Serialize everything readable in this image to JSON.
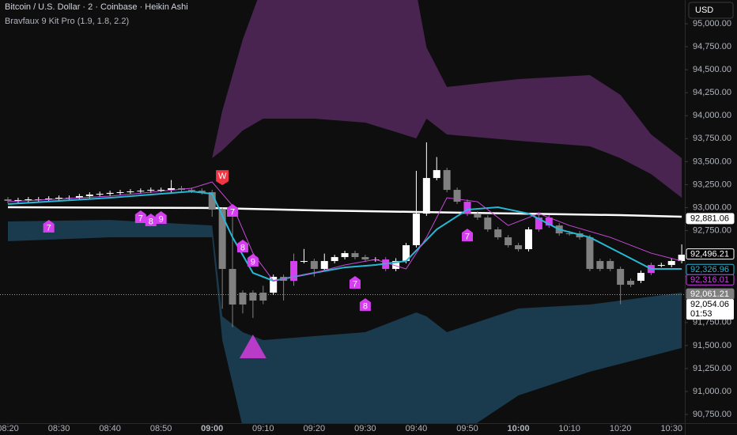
{
  "chart_data": {
    "type": "candlestick",
    "title": "Bitcoin / U.S. Dollar · 2 · Coinbase · Heikin Ashi",
    "subtitle": "Bravfaux 9 Kit Pro (1.9, 1.8, 2.2)",
    "currency": "USD",
    "x": [
      500,
      502,
      504,
      506,
      508,
      510,
      512,
      514,
      516,
      518,
      520,
      522,
      524,
      526,
      528,
      530,
      532,
      534,
      536,
      538,
      540,
      542,
      544,
      546,
      548,
      550,
      552,
      554,
      556,
      558,
      560,
      562,
      564,
      566,
      568,
      570,
      572,
      574,
      576,
      578,
      580,
      582,
      584,
      586,
      588,
      590,
      592,
      594,
      596,
      598,
      600,
      602,
      604,
      606,
      608,
      610,
      612,
      614,
      616,
      618,
      620,
      622,
      624,
      626,
      628,
      630,
      632
    ],
    "open": [
      93090,
      93073,
      93082,
      93090,
      93090,
      93099,
      93107,
      93107,
      93125,
      93142,
      93150,
      93160,
      93168,
      93176,
      93184,
      93193,
      93193,
      93211,
      93193,
      93184,
      93168,
      92978,
      92333,
      91946,
      92075,
      91989,
      92075,
      92247,
      92204,
      92419,
      92419,
      92333,
      92419,
      92462,
      92505,
      92462,
      92436,
      92436,
      92333,
      92419,
      92591,
      92935,
      93322,
      93408,
      93193,
      93064,
      92935,
      92892,
      92763,
      92677,
      92591,
      92548,
      92763,
      92892,
      92806,
      92720,
      92720,
      92677,
      92333,
      92419,
      92333,
      92161,
      92204,
      92290,
      92376,
      92376,
      92419
    ],
    "high": [
      93115,
      93107,
      93115,
      93115,
      93124,
      93132,
      93132,
      93150,
      93167,
      93175,
      93185,
      93193,
      93201,
      93209,
      93218,
      93218,
      93300,
      93236,
      93218,
      93209,
      93193,
      93000,
      92900,
      92100,
      92100,
      92150,
      92272,
      92272,
      92500,
      92550,
      92444,
      92500,
      92487,
      92530,
      92530,
      92487,
      92461,
      92461,
      92450,
      92616,
      93400,
      93710,
      93550,
      93433,
      93218,
      93089,
      92960,
      92917,
      92788,
      92702,
      92616,
      92788,
      92950,
      92917,
      92831,
      92745,
      92745,
      92702,
      92444,
      92444,
      92358,
      92229,
      92315,
      92401,
      92401,
      92444,
      92600
    ],
    "low": [
      93048,
      93048,
      93057,
      93065,
      93065,
      93074,
      93082,
      93082,
      93100,
      93117,
      93125,
      93135,
      93143,
      93151,
      93159,
      93168,
      93168,
      93168,
      93159,
      93143,
      92900,
      91900,
      91700,
      91850,
      91800,
      91950,
      92050,
      91990,
      92150,
      92394,
      92250,
      92308,
      92394,
      92437,
      92437,
      92411,
      92411,
      92308,
      92308,
      92394,
      92566,
      92910,
      93297,
      93168,
      93039,
      92910,
      92867,
      92738,
      92652,
      92566,
      92523,
      92523,
      92738,
      92781,
      92695,
      92695,
      92652,
      92308,
      92308,
      92308,
      91950,
      92136,
      92179,
      92265,
      92351,
      92351,
      92394
    ],
    "close": [
      93073,
      93082,
      93090,
      93090,
      93099,
      93107,
      93107,
      93125,
      93142,
      93150,
      93160,
      93168,
      93176,
      93184,
      93193,
      93193,
      93211,
      93193,
      93184,
      93168,
      92978,
      92333,
      91946,
      92075,
      91989,
      92075,
      92247,
      92204,
      92419,
      92419,
      92333,
      92419,
      92462,
      92505,
      92462,
      92436,
      92436,
      92333,
      92419,
      92591,
      92935,
      93322,
      93408,
      93193,
      93064,
      92935,
      92892,
      92763,
      92677,
      92591,
      92548,
      92763,
      92892,
      92806,
      92720,
      92720,
      92677,
      92333,
      92419,
      92333,
      92161,
      92204,
      92290,
      92376,
      92376,
      92419,
      92488
    ],
    "colors": [
      "#808080",
      "#ffffff",
      "#ffffff",
      "#ffffff",
      "#ffffff",
      "#ffffff",
      "#ffffff",
      "#ffffff",
      "#ffffff",
      "#ffffff",
      "#ffffff",
      "#ffffff",
      "#ffffff",
      "#ffffff",
      "#ffffff",
      "#ffffff",
      "#ffffff",
      "#808080",
      "#808080",
      "#808080",
      "#808080",
      "#808080",
      "#808080",
      "#808080",
      "#808080",
      "#808080",
      "#ffffff",
      "#808080",
      "#d63ff0",
      "#ffffff",
      "#808080",
      "#ffffff",
      "#ffffff",
      "#ffffff",
      "#808080",
      "#808080",
      "#ffffff",
      "#d63ff0",
      "#ffffff",
      "#ffffff",
      "#ffffff",
      "#ffffff",
      "#ffffff",
      "#808080",
      "#808080",
      "#d63ff0",
      "#808080",
      "#808080",
      "#808080",
      "#808080",
      "#808080",
      "#ffffff",
      "#d63ff0",
      "#d63ff0",
      "#808080",
      "#808080",
      "#808080",
      "#808080",
      "#808080",
      "#808080",
      "#808080",
      "#808080",
      "#ffffff",
      "#d63ff0",
      "#ffffff",
      "#ffffff",
      "#ffffff"
    ],
    "xlim": [
      498.45,
      632.6
    ],
    "ylim": [
      90656,
      95258
    ],
    "xticks": [
      {
        "value": 500,
        "label": "08:20"
      },
      {
        "value": 510,
        "label": "08:30"
      },
      {
        "value": 520,
        "label": "08:40"
      },
      {
        "value": 530,
        "label": "08:50"
      },
      {
        "value": 540,
        "label": "09:00"
      },
      {
        "value": 550,
        "label": "09:10"
      },
      {
        "value": 560,
        "label": "09:20"
      },
      {
        "value": 570,
        "label": "09:30"
      },
      {
        "value": 580,
        "label": "09:40"
      },
      {
        "value": 590,
        "label": "09:50"
      },
      {
        "value": 600,
        "label": "10:00"
      },
      {
        "value": 610,
        "label": "10:10"
      },
      {
        "value": 620,
        "label": "10:20"
      },
      {
        "value": 630,
        "label": "10:30"
      }
    ],
    "yticks": [
      {
        "value": 95000,
        "label": "95,000.00"
      },
      {
        "value": 94750,
        "label": "94,750.00"
      },
      {
        "value": 94500,
        "label": "94,500.00"
      },
      {
        "value": 94250,
        "label": "94,250.00"
      },
      {
        "value": 94000,
        "label": "94,000.00"
      },
      {
        "value": 93750,
        "label": "93,750.00"
      },
      {
        "value": 93500,
        "label": "93,500.00"
      },
      {
        "value": 93250,
        "label": "93,250.00"
      },
      {
        "value": 93000,
        "label": "93,000.00"
      },
      {
        "value": 92750,
        "label": "92,750.00"
      },
      {
        "value": 92500,
        "label": "92,500.00"
      },
      {
        "value": 92250,
        "label": "92,250.00"
      },
      {
        "value": 92000,
        "label": "92,000.00"
      },
      {
        "value": 91750,
        "label": "91,750.00"
      },
      {
        "value": 91500,
        "label": "91,500.00"
      },
      {
        "value": 91250,
        "label": "91,250.00"
      },
      {
        "value": 91000,
        "label": "91,000.00"
      },
      {
        "value": 90750,
        "label": "90,750.00"
      }
    ],
    "bands": [
      {
        "color": "#4a2450",
        "x": [
          500,
          520,
          540,
          542,
          546,
          550,
          560,
          570,
          580,
          582,
          586,
          600,
          614,
          620,
          626,
          632
        ],
        "upper": [
          null,
          null,
          93538,
          94054,
          94828,
          95430,
          95774,
          95774,
          95344,
          94742,
          94312,
          94398,
          94441,
          94226,
          93796,
          93538
        ],
        "lower": [
          null,
          null,
          93538,
          93624,
          93839,
          93968,
          93968,
          93925,
          93753,
          93968,
          93796,
          93727,
          93667,
          93538,
          93365,
          93107
        ]
      },
      {
        "color": "#1a3a4e",
        "x": [
          500,
          520,
          540,
          542,
          546,
          550,
          560,
          570,
          580,
          582,
          586,
          600,
          614,
          620,
          626,
          632
        ],
        "upper": [
          92849,
          92866,
          92806,
          91817,
          91645,
          91559,
          91602,
          91645,
          91860,
          91817,
          91645,
          91903,
          91946,
          91989,
          92032,
          92075
        ],
        "lower": [
          92634,
          92677,
          92677,
          91559,
          90613,
          90440,
          90440,
          90440,
          90440,
          90440,
          90440,
          90957,
          91215,
          91301,
          91387,
          91473
        ]
      }
    ],
    "lines": [
      {
        "color": "#ffffff",
        "width": 2.5,
        "x": [
          500,
          540,
          560,
          580,
          600,
          620,
          632
        ],
        "values": [
          93004,
          92996,
          92970,
          92953,
          92935,
          92918,
          92901
        ]
      },
      {
        "color": "#26b8d4",
        "width": 2,
        "x": [
          500,
          520,
          536,
          540,
          544,
          548,
          552,
          556,
          560,
          566,
          572,
          578,
          584,
          590,
          596,
          602,
          608,
          614,
          620,
          626,
          632
        ],
        "values": [
          93039,
          93107,
          93176,
          93150,
          92677,
          92290,
          92204,
          92247,
          92290,
          92350,
          92376,
          92419,
          92763,
          92978,
          93004,
          92935,
          92763,
          92677,
          92505,
          92333,
          92333
        ]
      },
      {
        "color": "#c94ad8",
        "width": 1,
        "x": [
          500,
          520,
          536,
          540,
          544,
          548,
          552,
          556,
          560,
          566,
          572,
          578,
          582,
          586,
          592,
          598,
          604,
          610,
          618,
          626,
          632
        ],
        "values": [
          93064,
          93125,
          93211,
          93279,
          93021,
          92505,
          92204,
          92247,
          92290,
          92376,
          92436,
          92333,
          92677,
          93107,
          93064,
          92806,
          92935,
          92806,
          92677,
          92505,
          92419
        ]
      }
    ],
    "markers": [
      {
        "x": 508,
        "y": 92789,
        "label": "7",
        "color": "#d63ff0"
      },
      {
        "x": 526,
        "y": 92892,
        "label": "7",
        "color": "#d63ff0"
      },
      {
        "x": 528,
        "y": 92858,
        "label": "8",
        "color": "#d63ff0"
      },
      {
        "x": 530,
        "y": 92884,
        "label": "9",
        "color": "#d63ff0"
      },
      {
        "x": 544,
        "y": 92961,
        "label": "7",
        "color": "#d63ff0"
      },
      {
        "x": 546,
        "y": 92574,
        "label": "8",
        "color": "#d63ff0"
      },
      {
        "x": 548,
        "y": 92419,
        "label": "9",
        "color": "#d63ff0"
      },
      {
        "x": 568,
        "y": 92178,
        "label": "7",
        "color": "#d63ff0"
      },
      {
        "x": 570,
        "y": 91937,
        "label": "8",
        "color": "#d63ff0"
      },
      {
        "x": 590,
        "y": 92694,
        "label": "7",
        "color": "#d63ff0"
      }
    ],
    "signal": {
      "x": 542,
      "y": 93322,
      "label": "W",
      "color": "#f23645"
    },
    "triangle": {
      "x": 548,
      "y": 91490,
      "color": "#b93cc8"
    },
    "price_labels": [
      {
        "value": 92881.06,
        "label": "92,881.06",
        "color": "#000000",
        "background": "#ffffff"
      },
      {
        "value": 92496.21,
        "label": "92,496.21",
        "color": "#ffffff",
        "background": "#000000"
      },
      {
        "value": 92326.96,
        "label": "92,326.96",
        "color": "#26b8d4",
        "background": "#000000"
      },
      {
        "value": 92316.01,
        "label": "92,316.01",
        "color": "#d63ff0",
        "background": "#000000"
      },
      {
        "value": 92061.21,
        "label": "92,061.21",
        "color": "#ffffff",
        "background": "#808080"
      }
    ],
    "last_price": {
      "value": 92054.06,
      "label": "92,054.06",
      "countdown": "01:53"
    }
  }
}
